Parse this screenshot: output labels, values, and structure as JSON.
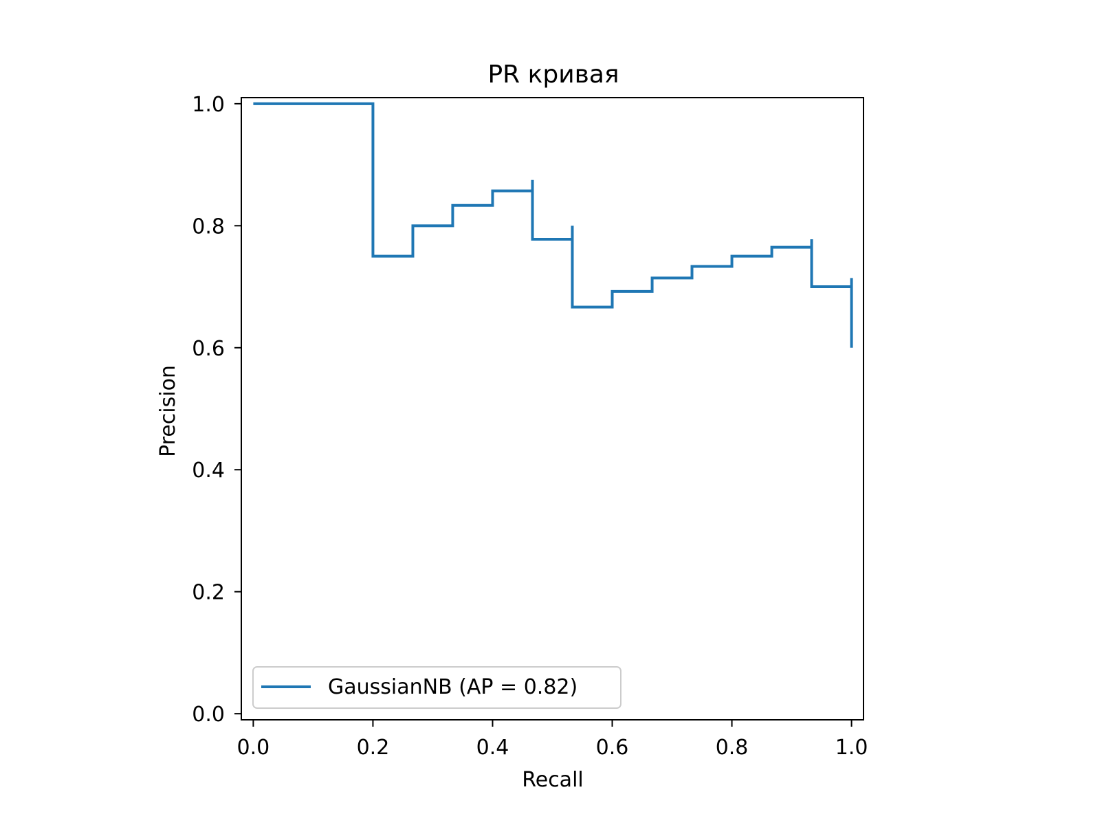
{
  "chart_data": {
    "type": "line",
    "style": "step",
    "title": "PR кривая",
    "xlabel": "Recall",
    "ylabel": "Precision",
    "xlim": [
      -0.02,
      1.02
    ],
    "ylim": [
      -0.01,
      1.01
    ],
    "x_ticks": [
      0.0,
      0.2,
      0.4,
      0.6,
      0.8,
      1.0
    ],
    "x_tick_labels": [
      "0.0",
      "0.2",
      "0.4",
      "0.6",
      "0.8",
      "1.0"
    ],
    "y_ticks": [
      0.0,
      0.2,
      0.4,
      0.6,
      0.8,
      1.0
    ],
    "y_tick_labels": [
      "0.0",
      "0.2",
      "0.4",
      "0.6",
      "0.8",
      "1.0"
    ],
    "grid": false,
    "legend_position": "lower-left",
    "series": [
      {
        "name": "GaussianNB (AP = 0.82)",
        "color": "#1f77b4",
        "recall": [
          1.0,
          1.0,
          0.9333,
          0.9333,
          0.8667,
          0.8,
          0.7333,
          0.6667,
          0.6,
          0.5333,
          0.5333,
          0.4667,
          0.4667,
          0.4,
          0.3333,
          0.2667,
          0.2,
          0.2,
          0.0
        ],
        "precision": [
          0.6,
          0.7143,
          0.7,
          0.7778,
          0.7647,
          0.75,
          0.7333,
          0.7143,
          0.6923,
          0.6667,
          0.8,
          0.7778,
          0.875,
          0.8571,
          0.8333,
          0.8,
          0.75,
          1.0,
          1.0
        ]
      }
    ]
  }
}
